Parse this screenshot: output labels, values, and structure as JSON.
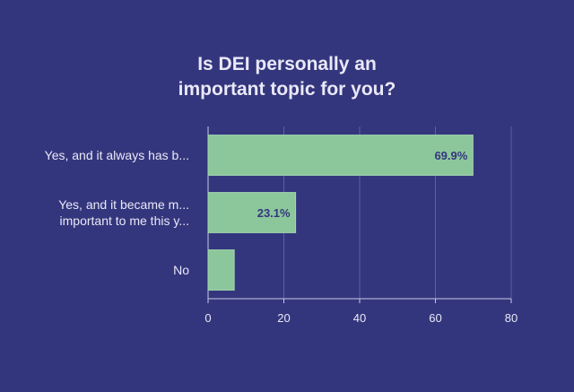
{
  "chart_data": {
    "type": "bar",
    "orientation": "horizontal",
    "title_lines": [
      "Is DEI personally an",
      "important topic for you?"
    ],
    "categories": [
      [
        "Yes, and it always has b..."
      ],
      [
        "Yes, and it became m...",
        "important to me this y..."
      ],
      [
        "No"
      ]
    ],
    "values": [
      69.9,
      23.1,
      6.9
    ],
    "data_labels": [
      "69.9%",
      "23.1%",
      ""
    ],
    "xlim": [
      0,
      80
    ],
    "xticks": [
      "0",
      "20",
      "40",
      "60",
      "80"
    ],
    "grid": true,
    "legend": "none",
    "colors": {
      "background": "#34367d",
      "bar": "#8cc79c",
      "bar_border": "#a3d6b0",
      "grid": "#5a5fa6",
      "axis": "#c9c9e8",
      "text": "#e9e8f7",
      "data_label": "#34367d"
    }
  }
}
